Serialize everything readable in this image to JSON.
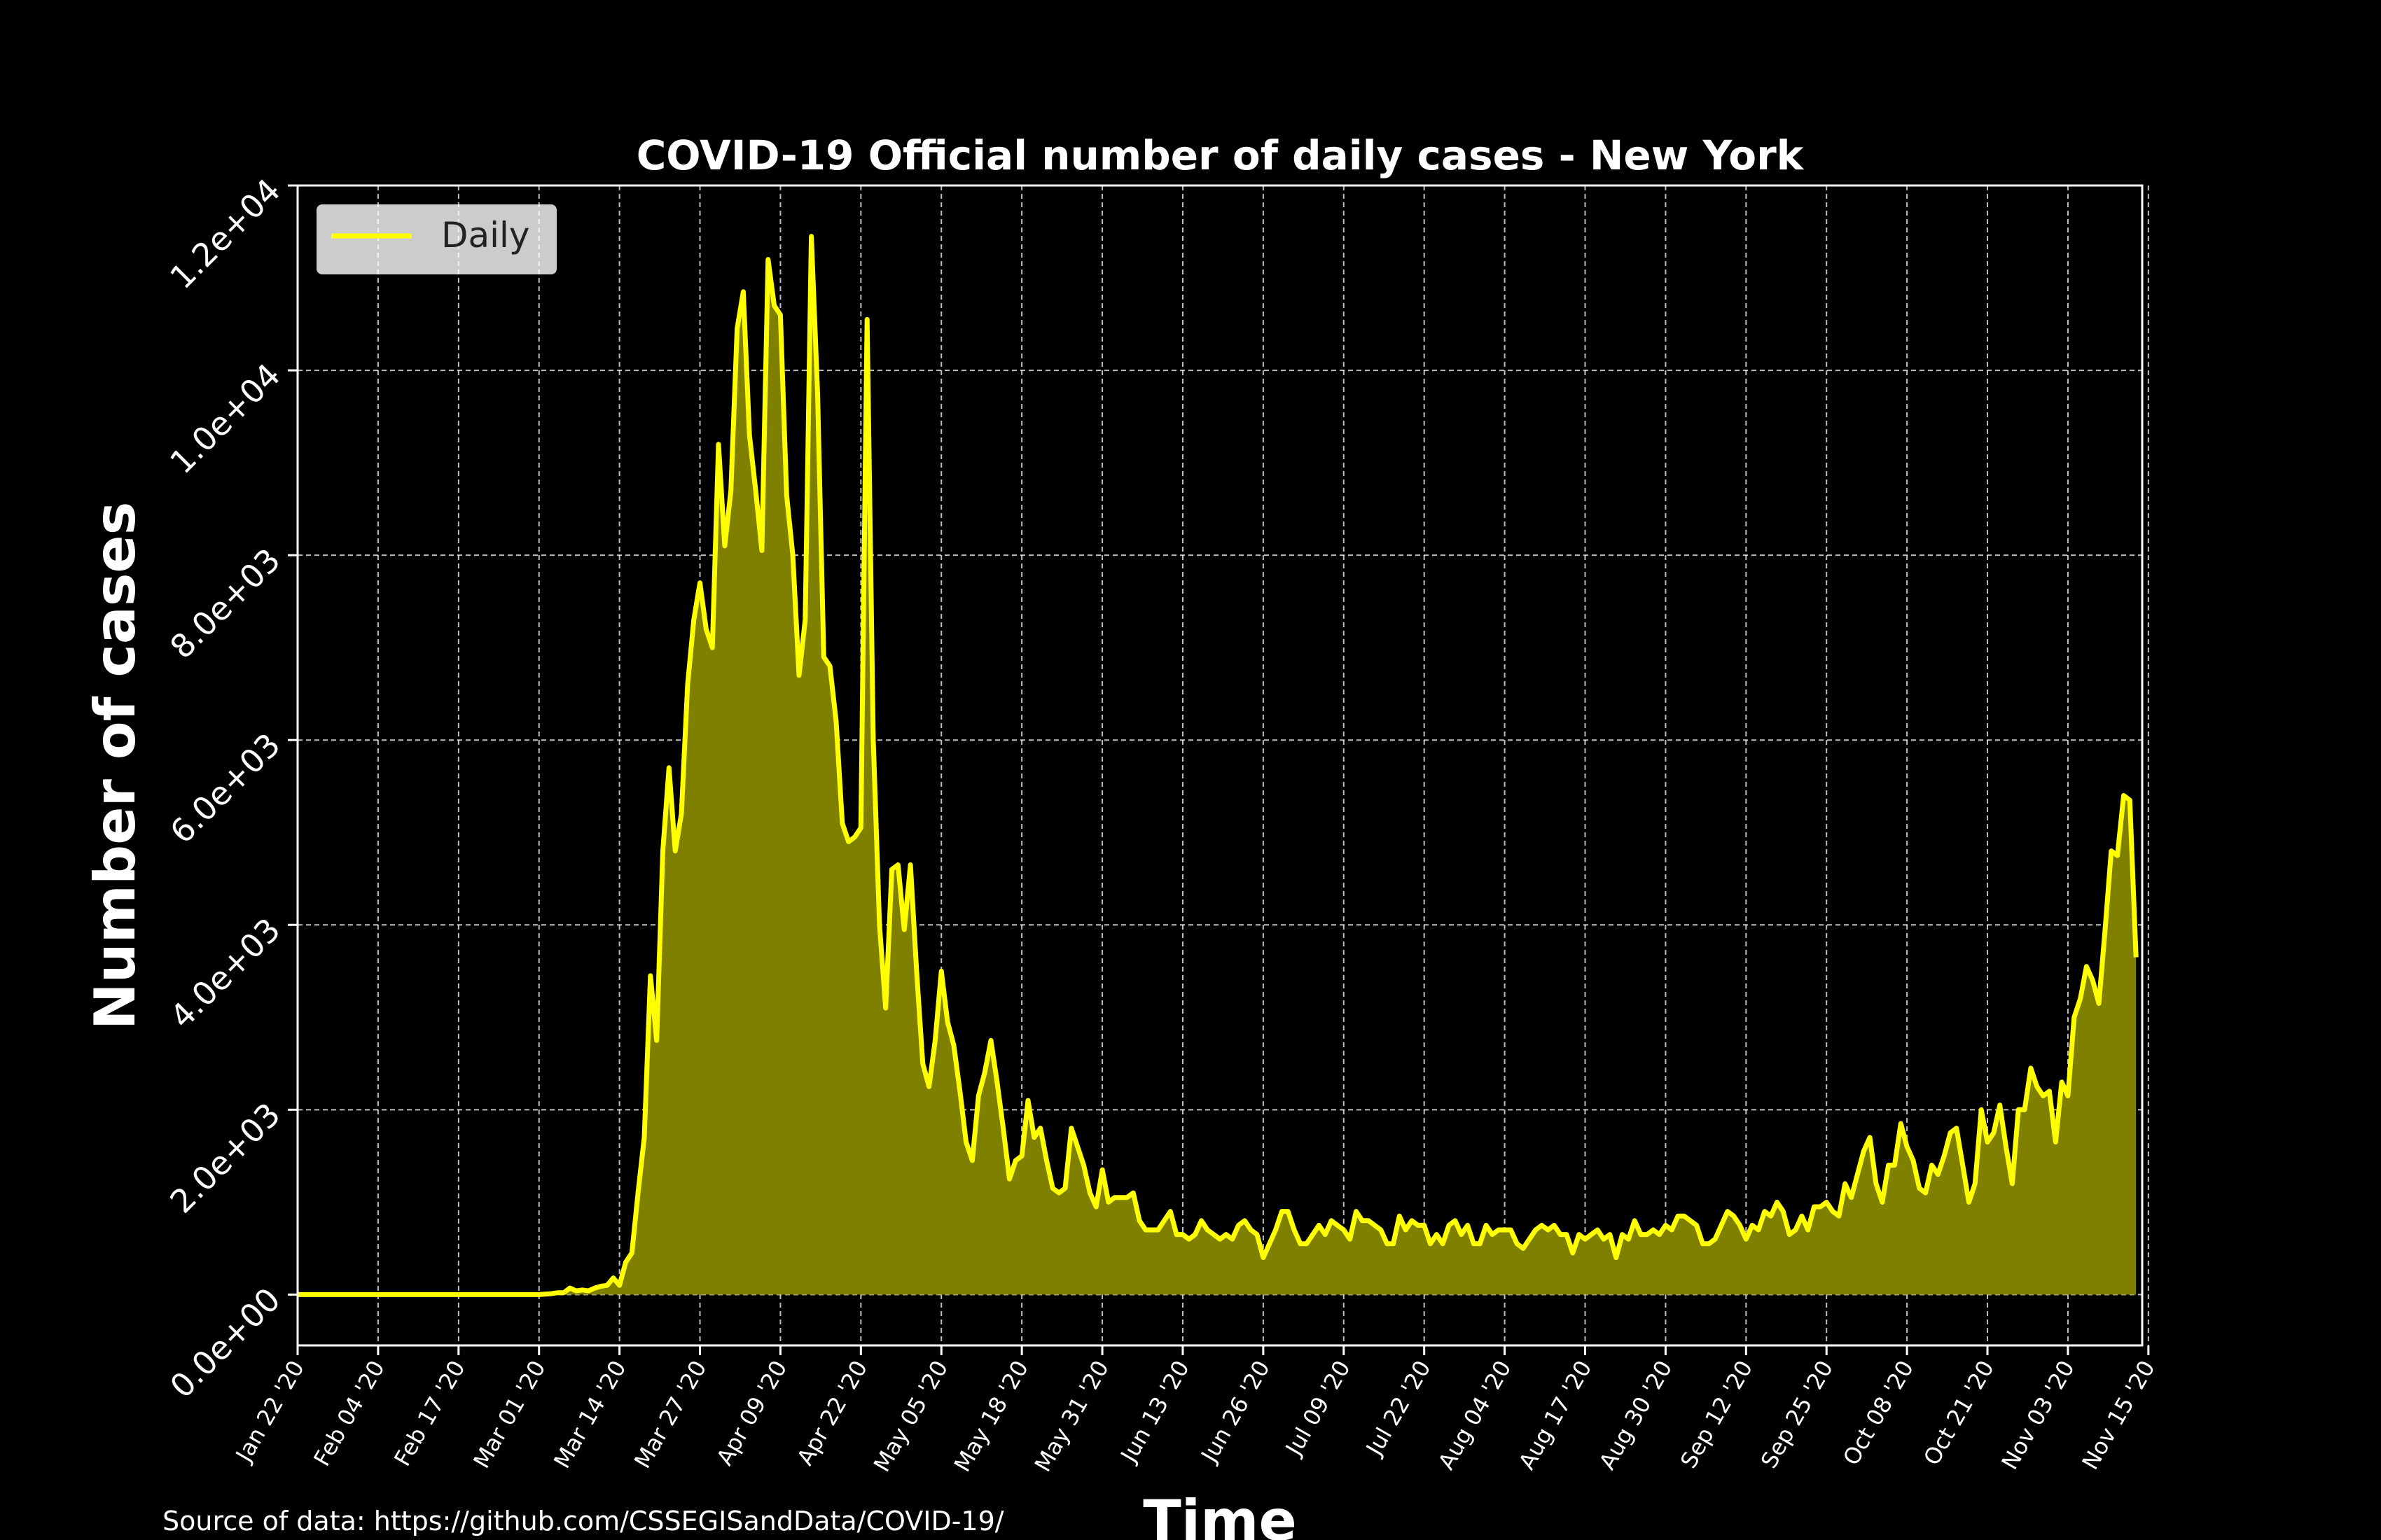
{
  "chart_data": {
    "type": "area",
    "title": "COVID-19 Official number of daily cases - New York",
    "xlabel": "Time",
    "ylabel": "Number of cases",
    "x_start": "2020-01-22",
    "x_end": "2020-11-15",
    "xlim": [
      "2020-01-22",
      "2020-11-15"
    ],
    "ylim": [
      -550,
      12000
    ],
    "grid": true,
    "legend_position": "top-left",
    "x_tick_labels": [
      "Jan 22 '20",
      "Feb 04 '20",
      "Feb 17 '20",
      "Mar 01 '20",
      "Mar 14 '20",
      "Mar 27 '20",
      "Apr 09 '20",
      "Apr 22 '20",
      "May 05 '20",
      "May 18 '20",
      "May 31 '20",
      "Jun 13 '20",
      "Jun 26 '20",
      "Jul 09 '20",
      "Jul 22 '20",
      "Aug 04 '20",
      "Aug 17 '20",
      "Aug 30 '20",
      "Sep 12 '20",
      "Sep 25 '20",
      "Oct 08 '20",
      "Oct 21 '20",
      "Nov 03 '20",
      "Nov 15 '20"
    ],
    "y_tick_values": [
      0,
      2000,
      4000,
      6000,
      8000,
      10000,
      12000
    ],
    "y_tick_labels": [
      "0.0e+00",
      "2.0e+03",
      "4.0e+03",
      "6.0e+03",
      "8.0e+03",
      "1.0e+04",
      "1.2e+04"
    ],
    "series": [
      {
        "name": "Daily",
        "color": "#ffff00",
        "fill_color": "#808000",
        "points": [
          [
            "2020-01-22",
            0
          ],
          [
            "2020-02-29",
            0
          ],
          [
            "2020-03-01",
            0
          ],
          [
            "2020-03-03",
            10
          ],
          [
            "2020-03-04",
            20
          ],
          [
            "2020-03-05",
            20
          ],
          [
            "2020-03-06",
            70
          ],
          [
            "2020-03-07",
            40
          ],
          [
            "2020-03-08",
            50
          ],
          [
            "2020-03-09",
            40
          ],
          [
            "2020-03-10",
            70
          ],
          [
            "2020-03-11",
            90
          ],
          [
            "2020-03-12",
            100
          ],
          [
            "2020-03-13",
            180
          ],
          [
            "2020-03-14",
            100
          ],
          [
            "2020-03-15",
            350
          ],
          [
            "2020-03-16",
            450
          ],
          [
            "2020-03-17",
            1100
          ],
          [
            "2020-03-18",
            1700
          ],
          [
            "2020-03-19",
            3450
          ],
          [
            "2020-03-20",
            2750
          ],
          [
            "2020-03-21",
            4800
          ],
          [
            "2020-03-22",
            5700
          ],
          [
            "2020-03-23",
            4800
          ],
          [
            "2020-03-24",
            5200
          ],
          [
            "2020-03-25",
            6600
          ],
          [
            "2020-03-26",
            7300
          ],
          [
            "2020-03-27",
            7700
          ],
          [
            "2020-03-28",
            7200
          ],
          [
            "2020-03-29",
            7000
          ],
          [
            "2020-03-30",
            9200
          ],
          [
            "2020-03-31",
            8100
          ],
          [
            "2020-04-01",
            8700
          ],
          [
            "2020-04-02",
            10450
          ],
          [
            "2020-04-03",
            10850
          ],
          [
            "2020-04-04",
            9300
          ],
          [
            "2020-04-05",
            8700
          ],
          [
            "2020-04-06",
            8050
          ],
          [
            "2020-04-07",
            11200
          ],
          [
            "2020-04-08",
            10700
          ],
          [
            "2020-04-09",
            10600
          ],
          [
            "2020-04-10",
            8650
          ],
          [
            "2020-04-11",
            8000
          ],
          [
            "2020-04-12",
            6700
          ],
          [
            "2020-04-13",
            7300
          ],
          [
            "2020-04-14",
            11450
          ],
          [
            "2020-04-15",
            9750
          ],
          [
            "2020-04-16",
            6900
          ],
          [
            "2020-04-17",
            6800
          ],
          [
            "2020-04-18",
            6200
          ],
          [
            "2020-04-19",
            5100
          ],
          [
            "2020-04-20",
            4900
          ],
          [
            "2020-04-21",
            4950
          ],
          [
            "2020-04-22",
            5050
          ],
          [
            "2020-04-23",
            10550
          ],
          [
            "2020-04-24",
            6000
          ],
          [
            "2020-04-25",
            4000
          ],
          [
            "2020-04-26",
            3100
          ],
          [
            "2020-04-27",
            4600
          ],
          [
            "2020-04-28",
            4650
          ],
          [
            "2020-04-29",
            3950
          ],
          [
            "2020-04-30",
            4650
          ],
          [
            "2020-05-01",
            3500
          ],
          [
            "2020-05-02",
            2500
          ],
          [
            "2020-05-03",
            2250
          ],
          [
            "2020-05-04",
            2750
          ],
          [
            "2020-05-05",
            3500
          ],
          [
            "2020-05-06",
            2950
          ],
          [
            "2020-05-07",
            2700
          ],
          [
            "2020-05-08",
            2200
          ],
          [
            "2020-05-09",
            1650
          ],
          [
            "2020-05-10",
            1450
          ],
          [
            "2020-05-11",
            2150
          ],
          [
            "2020-05-12",
            2400
          ],
          [
            "2020-05-13",
            2750
          ],
          [
            "2020-05-14",
            2300
          ],
          [
            "2020-05-15",
            1800
          ],
          [
            "2020-05-16",
            1250
          ],
          [
            "2020-05-17",
            1450
          ],
          [
            "2020-05-18",
            1500
          ],
          [
            "2020-05-19",
            2100
          ],
          [
            "2020-05-20",
            1700
          ],
          [
            "2020-05-21",
            1800
          ],
          [
            "2020-05-22",
            1450
          ],
          [
            "2020-05-23",
            1150
          ],
          [
            "2020-05-24",
            1100
          ],
          [
            "2020-05-25",
            1150
          ],
          [
            "2020-05-26",
            1800
          ],
          [
            "2020-05-27",
            1600
          ],
          [
            "2020-05-28",
            1400
          ],
          [
            "2020-05-29",
            1100
          ],
          [
            "2020-05-30",
            950
          ],
          [
            "2020-05-31",
            1350
          ],
          [
            "2020-06-01",
            1000
          ],
          [
            "2020-06-02",
            1050
          ],
          [
            "2020-06-03",
            1050
          ],
          [
            "2020-06-04",
            1050
          ],
          [
            "2020-06-05",
            1100
          ],
          [
            "2020-06-06",
            800
          ],
          [
            "2020-06-07",
            700
          ],
          [
            "2020-06-08",
            700
          ],
          [
            "2020-06-09",
            700
          ],
          [
            "2020-06-10",
            800
          ],
          [
            "2020-06-11",
            900
          ],
          [
            "2020-06-12",
            650
          ],
          [
            "2020-06-13",
            650
          ],
          [
            "2020-06-14",
            600
          ],
          [
            "2020-06-15",
            650
          ],
          [
            "2020-06-16",
            800
          ],
          [
            "2020-06-17",
            700
          ],
          [
            "2020-06-18",
            650
          ],
          [
            "2020-06-19",
            600
          ],
          [
            "2020-06-20",
            650
          ],
          [
            "2020-06-21",
            600
          ],
          [
            "2020-06-22",
            750
          ],
          [
            "2020-06-23",
            800
          ],
          [
            "2020-06-24",
            700
          ],
          [
            "2020-06-25",
            650
          ],
          [
            "2020-06-26",
            400
          ],
          [
            "2020-06-27",
            550
          ],
          [
            "2020-06-28",
            700
          ],
          [
            "2020-06-29",
            900
          ],
          [
            "2020-06-30",
            900
          ],
          [
            "2020-07-01",
            700
          ],
          [
            "2020-07-02",
            550
          ],
          [
            "2020-07-03",
            550
          ],
          [
            "2020-07-04",
            650
          ],
          [
            "2020-07-05",
            750
          ],
          [
            "2020-07-06",
            650
          ],
          [
            "2020-07-07",
            800
          ],
          [
            "2020-07-08",
            750
          ],
          [
            "2020-07-09",
            700
          ],
          [
            "2020-07-10",
            600
          ],
          [
            "2020-07-11",
            900
          ],
          [
            "2020-07-12",
            800
          ],
          [
            "2020-07-13",
            800
          ],
          [
            "2020-07-14",
            750
          ],
          [
            "2020-07-15",
            700
          ],
          [
            "2020-07-16",
            550
          ],
          [
            "2020-07-17",
            550
          ],
          [
            "2020-07-18",
            850
          ],
          [
            "2020-07-19",
            700
          ],
          [
            "2020-07-20",
            800
          ],
          [
            "2020-07-21",
            750
          ],
          [
            "2020-07-22",
            750
          ],
          [
            "2020-07-23",
            550
          ],
          [
            "2020-07-24",
            650
          ],
          [
            "2020-07-25",
            550
          ],
          [
            "2020-07-26",
            750
          ],
          [
            "2020-07-27",
            800
          ],
          [
            "2020-07-28",
            650
          ],
          [
            "2020-07-29",
            750
          ],
          [
            "2020-07-30",
            550
          ],
          [
            "2020-07-31",
            550
          ],
          [
            "2020-08-01",
            750
          ],
          [
            "2020-08-02",
            650
          ],
          [
            "2020-08-03",
            700
          ],
          [
            "2020-08-04",
            700
          ],
          [
            "2020-08-05",
            700
          ],
          [
            "2020-08-06",
            550
          ],
          [
            "2020-08-07",
            500
          ],
          [
            "2020-08-08",
            600
          ],
          [
            "2020-08-09",
            700
          ],
          [
            "2020-08-10",
            750
          ],
          [
            "2020-08-11",
            700
          ],
          [
            "2020-08-12",
            750
          ],
          [
            "2020-08-13",
            650
          ],
          [
            "2020-08-14",
            650
          ],
          [
            "2020-08-15",
            450
          ],
          [
            "2020-08-16",
            650
          ],
          [
            "2020-08-17",
            600
          ],
          [
            "2020-08-18",
            650
          ],
          [
            "2020-08-19",
            700
          ],
          [
            "2020-08-20",
            600
          ],
          [
            "2020-08-21",
            650
          ],
          [
            "2020-08-22",
            400
          ],
          [
            "2020-08-23",
            650
          ],
          [
            "2020-08-24",
            600
          ],
          [
            "2020-08-25",
            800
          ],
          [
            "2020-08-26",
            650
          ],
          [
            "2020-08-27",
            650
          ],
          [
            "2020-08-28",
            700
          ],
          [
            "2020-08-29",
            650
          ],
          [
            "2020-08-30",
            750
          ],
          [
            "2020-08-31",
            700
          ],
          [
            "2020-09-01",
            850
          ],
          [
            "2020-09-02",
            850
          ],
          [
            "2020-09-03",
            800
          ],
          [
            "2020-09-04",
            750
          ],
          [
            "2020-09-05",
            550
          ],
          [
            "2020-09-06",
            550
          ],
          [
            "2020-09-07",
            600
          ],
          [
            "2020-09-08",
            750
          ],
          [
            "2020-09-09",
            900
          ],
          [
            "2020-09-10",
            850
          ],
          [
            "2020-09-11",
            750
          ],
          [
            "2020-09-12",
            600
          ],
          [
            "2020-09-13",
            750
          ],
          [
            "2020-09-14",
            700
          ],
          [
            "2020-09-15",
            900
          ],
          [
            "2020-09-16",
            850
          ],
          [
            "2020-09-17",
            1000
          ],
          [
            "2020-09-18",
            900
          ],
          [
            "2020-09-19",
            650
          ],
          [
            "2020-09-20",
            700
          ],
          [
            "2020-09-21",
            850
          ],
          [
            "2020-09-22",
            700
          ],
          [
            "2020-09-23",
            950
          ],
          [
            "2020-09-24",
            950
          ],
          [
            "2020-09-25",
            1000
          ],
          [
            "2020-09-26",
            900
          ],
          [
            "2020-09-27",
            850
          ],
          [
            "2020-09-28",
            1200
          ],
          [
            "2020-09-29",
            1050
          ],
          [
            "2020-09-30",
            1300
          ],
          [
            "2020-10-01",
            1550
          ],
          [
            "2020-10-02",
            1700
          ],
          [
            "2020-10-03",
            1200
          ],
          [
            "2020-10-04",
            1000
          ],
          [
            "2020-10-05",
            1400
          ],
          [
            "2020-10-06",
            1400
          ],
          [
            "2020-10-07",
            1850
          ],
          [
            "2020-10-08",
            1600
          ],
          [
            "2020-10-09",
            1450
          ],
          [
            "2020-10-10",
            1150
          ],
          [
            "2020-10-11",
            1100
          ],
          [
            "2020-10-12",
            1400
          ],
          [
            "2020-10-13",
            1300
          ],
          [
            "2020-10-14",
            1500
          ],
          [
            "2020-10-15",
            1750
          ],
          [
            "2020-10-16",
            1800
          ],
          [
            "2020-10-17",
            1400
          ],
          [
            "2020-10-18",
            1000
          ],
          [
            "2020-10-19",
            1200
          ],
          [
            "2020-10-20",
            2000
          ],
          [
            "2020-10-21",
            1650
          ],
          [
            "2020-10-22",
            1750
          ],
          [
            "2020-10-23",
            2050
          ],
          [
            "2020-10-24",
            1600
          ],
          [
            "2020-10-25",
            1200
          ],
          [
            "2020-10-26",
            2000
          ],
          [
            "2020-10-27",
            2000
          ],
          [
            "2020-10-28",
            2450
          ],
          [
            "2020-10-29",
            2250
          ],
          [
            "2020-10-30",
            2150
          ],
          [
            "2020-10-31",
            2200
          ],
          [
            "2020-11-01",
            1650
          ],
          [
            "2020-11-02",
            2300
          ],
          [
            "2020-11-03",
            2150
          ],
          [
            "2020-11-04",
            3000
          ],
          [
            "2020-11-05",
            3200
          ],
          [
            "2020-11-06",
            3550
          ],
          [
            "2020-11-07",
            3400
          ],
          [
            "2020-11-08",
            3150
          ],
          [
            "2020-11-09",
            3950
          ],
          [
            "2020-11-10",
            4800
          ],
          [
            "2020-11-11",
            4750
          ],
          [
            "2020-11-12",
            5400
          ],
          [
            "2020-11-13",
            5350
          ],
          [
            "2020-11-14",
            3650
          ]
        ]
      }
    ]
  },
  "source_note": "Source of data: https://github.com/CSSEGISandData/COVID-19/"
}
